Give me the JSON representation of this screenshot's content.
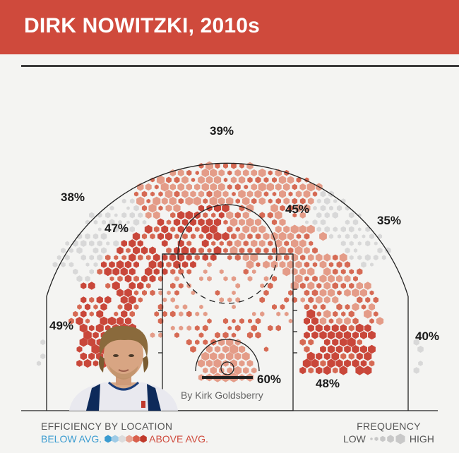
{
  "header": {
    "title": "DIRK NOWITZKI, 2010s"
  },
  "credit": "By Kirk Goldsberry",
  "legend": {
    "efficiency_title": "EFFICIENCY BY LOCATION",
    "below_label": "BELOW AVG.",
    "above_label": "ABOVE AVG.",
    "frequency_title": "FREQUENCY",
    "low_label": "LOW",
    "high_label": "HIGH",
    "efficiency_colors": [
      "#3a9bd0",
      "#9ecbe6",
      "#dcdcdc",
      "#e8a391",
      "#d95f4b",
      "#c0392b"
    ],
    "frequency_color": "#c8c8c8"
  },
  "chart_data": {
    "type": "shot chart",
    "player": "Dirk Nowitzki",
    "period": "2010s",
    "zones": [
      {
        "zone": "straight-away three",
        "fg_pct": "39%",
        "efficiency": "above"
      },
      {
        "zone": "left wing three",
        "fg_pct": "38%",
        "efficiency": "average"
      },
      {
        "zone": "right wing three",
        "fg_pct": "35%",
        "efficiency": "average"
      },
      {
        "zone": "left elbow long two",
        "fg_pct": "47%",
        "efficiency": "above"
      },
      {
        "zone": "right elbow long two",
        "fg_pct": "45%",
        "efficiency": "above"
      },
      {
        "zone": "left baseline two",
        "fg_pct": "49%",
        "efficiency": "above"
      },
      {
        "zone": "right baseline two",
        "fg_pct": "48%",
        "efficiency": "above"
      },
      {
        "zone": "right corner three",
        "fg_pct": "40%",
        "efficiency": "average"
      },
      {
        "zone": "restricted area",
        "fg_pct": "60%",
        "efficiency": "above"
      }
    ]
  }
}
